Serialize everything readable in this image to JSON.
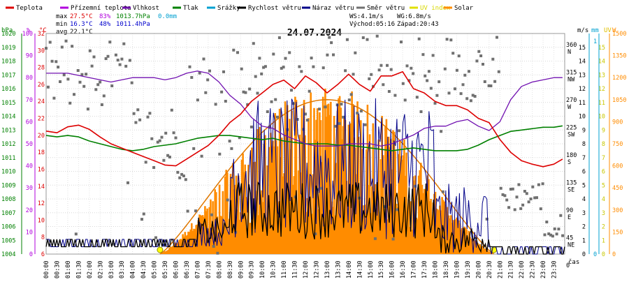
{
  "chart_data": {
    "type": "line",
    "title": "24.07.2024",
    "legend": [
      {
        "label": "Teplota",
        "color": "#dd0000"
      },
      {
        "label": "Přízemní teplota",
        "color": "#b000dd"
      },
      {
        "label": "Vlhkost",
        "color": "#7010b0"
      },
      {
        "label": "Tlak",
        "color": "#008000"
      },
      {
        "label": "Srážky",
        "color": "#00a0d0"
      },
      {
        "label": "Rychlost větru",
        "color": "#000000"
      },
      {
        "label": "Náraz větru",
        "color": "#000088"
      },
      {
        "label": "Směr větru",
        "color": "#707070"
      },
      {
        "label": "UV index",
        "color": "#e0e000"
      },
      {
        "label": "Solar",
        "color": "#ff8c00"
      }
    ],
    "summary": {
      "max": {
        "prefix": "max",
        "temp": "27.5°C",
        "hum": "83%",
        "press": "1013.7hPa",
        "rain": "0.0mm"
      },
      "min": {
        "prefix": "min",
        "temp": "16.3°C",
        "hum": "48%",
        "press": "1011.4hPa"
      },
      "avg": {
        "prefix": "avg",
        "temp": "22.1°C"
      },
      "ws": "WS:4.1m/s",
      "wg": "WG:6.8m/s",
      "sunrise": "Východ:05:16",
      "sunset": "Západ:20:43"
    },
    "axes": {
      "hpa": {
        "unit": "hPa",
        "color": "#008000",
        "ticks": [
          "1020",
          "1019",
          "1018",
          "1017",
          "1016",
          "1015",
          "1014",
          "1013",
          "1012",
          "1011",
          "1010",
          "1009",
          "1008",
          "1007",
          "1006",
          "1005",
          "1004"
        ]
      },
      "pct": {
        "unit": "%",
        "color": "#b000dd",
        "ticks": [
          "100",
          "90",
          "80",
          "70",
          "60",
          "50",
          "40",
          "30",
          "20",
          "10",
          "0"
        ]
      },
      "degc": {
        "unit": "°C",
        "color": "#dd0000",
        "ticks": [
          "32",
          "30",
          "28",
          "26",
          "24",
          "22",
          "20",
          "18",
          "16",
          "14",
          "12",
          "10",
          "8",
          "6"
        ]
      },
      "ms": {
        "unit": "m/s",
        "color": "#000000",
        "ticks": [
          "15",
          "14",
          "13",
          "12",
          "11",
          "10",
          "9",
          "8",
          "7",
          "6",
          "5",
          "4",
          "3",
          "2",
          "1",
          "0"
        ]
      },
      "dir": {
        "ticks": [
          {
            "v": "360",
            "l": "N"
          },
          {
            "v": "315",
            "l": "NW"
          },
          {
            "v": "270",
            "l": "W"
          },
          {
            "v": "225",
            "l": "SW"
          },
          {
            "v": "180",
            "l": "S"
          },
          {
            "v": "135",
            "l": "SE"
          },
          {
            "v": "90",
            "l": "E"
          },
          {
            "v": "45",
            "l": "NE"
          },
          {
            "v": "0",
            "l": ""
          }
        ]
      },
      "mm": {
        "unit": "mm",
        "color": "#00a0d0",
        "ticks": [
          "1",
          "0"
        ]
      },
      "uv": {
        "unit": "UV",
        "color": "#e0c000",
        "ticks": [
          "15",
          "14",
          "13",
          "12",
          "11",
          "10",
          "9",
          "8",
          "7",
          "6",
          "5",
          "4",
          "3",
          "2",
          "1",
          "0"
        ]
      },
      "wm2": {
        "unit": "W",
        "color": "#ff8c00",
        "ticks": [
          "1500",
          "1350",
          "1200",
          "1050",
          "900",
          "750",
          "600",
          "450",
          "300",
          "150",
          "0"
        ]
      },
      "x_label": "čas",
      "x_ticks": [
        "00:00",
        "00:30",
        "01:00",
        "01:30",
        "02:00",
        "02:30",
        "03:00",
        "03:30",
        "04:00",
        "04:30",
        "05:00",
        "05:30",
        "06:00",
        "06:30",
        "07:00",
        "07:30",
        "08:00",
        "08:30",
        "09:00",
        "09:30",
        "10:00",
        "10:30",
        "11:00",
        "11:30",
        "12:00",
        "12:30",
        "13:00",
        "13:30",
        "14:00",
        "14:30",
        "15:00",
        "15:30",
        "16:00",
        "16:30",
        "17:00",
        "17:30",
        "18:00",
        "18:30",
        "19:00",
        "19:30",
        "20:00",
        "20:30",
        "21:00",
        "21:30",
        "22:00",
        "22:30",
        "23:00",
        "23:30"
      ]
    },
    "ranges": {
      "temp": [
        6,
        32
      ],
      "hum": [
        0,
        100
      ],
      "press": [
        1004,
        1020
      ],
      "wind": [
        0,
        15
      ],
      "dir": [
        0,
        360
      ],
      "solar": [
        0,
        1500
      ]
    },
    "series": {
      "temperature": [
        [
          0,
          20.5
        ],
        [
          0.5,
          20.3
        ],
        [
          1,
          21.0
        ],
        [
          1.5,
          21.2
        ],
        [
          2,
          20.7
        ],
        [
          2.5,
          19.8
        ],
        [
          3,
          19.0
        ],
        [
          3.5,
          18.5
        ],
        [
          4,
          18.0
        ],
        [
          4.5,
          17.5
        ],
        [
          5,
          17.0
        ],
        [
          5.5,
          16.5
        ],
        [
          6,
          16.4
        ],
        [
          6.5,
          17.2
        ],
        [
          7,
          18.0
        ],
        [
          7.5,
          18.8
        ],
        [
          8,
          20.0
        ],
        [
          8.5,
          21.5
        ],
        [
          9,
          22.5
        ],
        [
          9.5,
          24.0
        ],
        [
          10,
          25.0
        ],
        [
          10.5,
          26.0
        ],
        [
          11,
          26.5
        ],
        [
          11.5,
          25.5
        ],
        [
          12,
          27.0
        ],
        [
          12.5,
          26.2
        ],
        [
          13,
          25.0
        ],
        [
          13.5,
          26.0
        ],
        [
          14,
          27.2
        ],
        [
          14.5,
          26.0
        ],
        [
          15,
          25.2
        ],
        [
          15.5,
          27.0
        ],
        [
          16,
          27.0
        ],
        [
          16.5,
          27.5
        ],
        [
          17,
          25.5
        ],
        [
          17.5,
          25.0
        ],
        [
          18,
          24.0
        ],
        [
          18.5,
          23.5
        ],
        [
          19,
          23.5
        ],
        [
          19.5,
          23.0
        ],
        [
          20,
          22.0
        ],
        [
          20.5,
          21.5
        ],
        [
          21,
          19.5
        ],
        [
          21.5,
          18.0
        ],
        [
          22,
          17.0
        ],
        [
          22.5,
          16.6
        ],
        [
          23,
          16.3
        ],
        [
          23.5,
          16.6
        ],
        [
          23.9,
          17.2
        ]
      ],
      "humidity": [
        [
          0,
          82
        ],
        [
          0.5,
          82
        ],
        [
          1,
          82
        ],
        [
          1.5,
          81
        ],
        [
          2,
          80
        ],
        [
          2.5,
          79
        ],
        [
          3,
          78
        ],
        [
          3.5,
          79
        ],
        [
          4,
          80
        ],
        [
          4.5,
          80
        ],
        [
          5,
          80
        ],
        [
          5.5,
          79
        ],
        [
          6,
          80
        ],
        [
          6.5,
          82
        ],
        [
          7,
          83
        ],
        [
          7.5,
          82
        ],
        [
          8,
          78
        ],
        [
          8.5,
          72
        ],
        [
          9,
          68
        ],
        [
          9.5,
          62
        ],
        [
          10,
          58
        ],
        [
          10.5,
          57
        ],
        [
          11,
          54
        ],
        [
          11.5,
          52
        ],
        [
          12,
          50
        ],
        [
          12.5,
          49
        ],
        [
          13,
          49
        ],
        [
          13.5,
          49
        ],
        [
          14,
          50
        ],
        [
          14.5,
          50
        ],
        [
          15,
          50
        ],
        [
          15.5,
          49
        ],
        [
          16,
          50
        ],
        [
          16.5,
          52
        ],
        [
          17,
          54
        ],
        [
          17.5,
          57
        ],
        [
          18,
          58
        ],
        [
          18.5,
          58
        ],
        [
          19,
          60
        ],
        [
          19.5,
          61
        ],
        [
          20,
          58
        ],
        [
          20.5,
          56
        ],
        [
          21,
          60
        ],
        [
          21.5,
          70
        ],
        [
          22,
          76
        ],
        [
          22.5,
          78
        ],
        [
          23,
          79
        ],
        [
          23.5,
          80
        ],
        [
          23.9,
          80
        ]
      ],
      "pressure": [
        [
          0,
          1012.6
        ],
        [
          0.5,
          1012.5
        ],
        [
          1,
          1012.6
        ],
        [
          1.5,
          1012.5
        ],
        [
          2,
          1012.2
        ],
        [
          2.5,
          1012.0
        ],
        [
          3,
          1011.8
        ],
        [
          3.5,
          1011.6
        ],
        [
          4,
          1011.5
        ],
        [
          4.5,
          1011.6
        ],
        [
          5,
          1011.8
        ],
        [
          5.5,
          1011.9
        ],
        [
          6,
          1012.0
        ],
        [
          6.5,
          1012.2
        ],
        [
          7,
          1012.4
        ],
        [
          7.5,
          1012.5
        ],
        [
          8,
          1012.6
        ],
        [
          8.5,
          1012.6
        ],
        [
          9,
          1012.5
        ],
        [
          9.5,
          1012.4
        ],
        [
          10,
          1012.3
        ],
        [
          10.5,
          1012.4
        ],
        [
          11,
          1012.2
        ],
        [
          11.5,
          1012.1
        ],
        [
          12,
          1012.0
        ],
        [
          12.5,
          1012.0
        ],
        [
          13,
          1012.0
        ],
        [
          13.5,
          1011.9
        ],
        [
          14,
          1011.9
        ],
        [
          14.5,
          1011.8
        ],
        [
          15,
          1011.7
        ],
        [
          15.5,
          1011.6
        ],
        [
          16,
          1011.5
        ],
        [
          16.5,
          1011.6
        ],
        [
          17,
          1011.7
        ],
        [
          17.5,
          1011.6
        ],
        [
          18,
          1011.5
        ],
        [
          18.5,
          1011.5
        ],
        [
          19,
          1011.5
        ],
        [
          19.5,
          1011.6
        ],
        [
          20,
          1011.9
        ],
        [
          20.5,
          1012.3
        ],
        [
          21,
          1012.6
        ],
        [
          21.5,
          1012.9
        ],
        [
          22,
          1013.0
        ],
        [
          22.5,
          1013.1
        ],
        [
          23,
          1013.2
        ],
        [
          23.5,
          1013.2
        ],
        [
          23.9,
          1013.3
        ]
      ],
      "solar_max_w": 1050,
      "sun_window": [
        5.27,
        20.72
      ]
    }
  }
}
